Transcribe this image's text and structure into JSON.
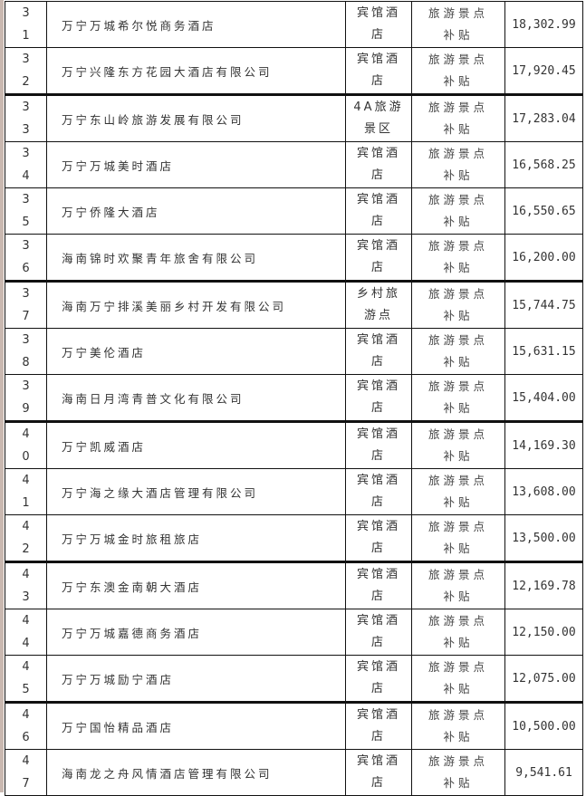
{
  "rows": [
    {
      "no": "31",
      "name": "万宁万城希尔悦商务酒店",
      "type": "宾馆酒店",
      "subsidy": "旅游景点补贴",
      "amount": "18,302.99"
    },
    {
      "no": "32",
      "name": "万宁兴隆东方花园大酒店有限公司",
      "type": "宾馆酒店",
      "subsidy": "旅游景点补贴",
      "amount": "17,920.45"
    },
    {
      "no": "33",
      "name": "万宁东山岭旅游发展有限公司",
      "type": "4A旅游景区",
      "subsidy": "旅游景点补贴",
      "amount": "17,283.04"
    },
    {
      "no": "34",
      "name": "万宁万城美时酒店",
      "type": "宾馆酒店",
      "subsidy": "旅游景点补贴",
      "amount": "16,568.25"
    },
    {
      "no": "35",
      "name": "万宁侨隆大酒店",
      "type": "宾馆酒店",
      "subsidy": "旅游景点补贴",
      "amount": "16,550.65"
    },
    {
      "no": "36",
      "name": "海南锦时欢聚青年旅舍有限公司",
      "type": "宾馆酒店",
      "subsidy": "旅游景点补贴",
      "amount": "16,200.00"
    },
    {
      "no": "37",
      "name": "海南万宁排溪美丽乡村开发有限公司",
      "type": "乡村旅游点",
      "subsidy": "旅游景点补贴",
      "amount": "15,744.75"
    },
    {
      "no": "38",
      "name": "万宁美伦酒店",
      "type": "宾馆酒店",
      "subsidy": "旅游景点补贴",
      "amount": "15,631.15"
    },
    {
      "no": "39",
      "name": "海南日月湾青普文化有限公司",
      "type": "宾馆酒店",
      "subsidy": "旅游景点补贴",
      "amount": "15,404.00"
    },
    {
      "no": "40",
      "name": "万宁凯威酒店",
      "type": "宾馆酒店",
      "subsidy": "旅游景点补贴",
      "amount": "14,169.30"
    },
    {
      "no": "41",
      "name": "万宁海之缘大酒店管理有限公司",
      "type": "宾馆酒店",
      "subsidy": "旅游景点补贴",
      "amount": "13,608.00"
    },
    {
      "no": "42",
      "name": "万宁万城金时旅租旅店",
      "type": "宾馆酒店",
      "subsidy": "旅游景点补贴",
      "amount": "13,500.00"
    },
    {
      "no": "43",
      "name": "万宁东澳金南朝大酒店",
      "type": "宾馆酒店",
      "subsidy": "旅游景点补贴",
      "amount": "12,169.78"
    },
    {
      "no": "44",
      "name": "万宁万城嘉德商务酒店",
      "type": "宾馆酒店",
      "subsidy": "旅游景点补贴",
      "amount": "12,150.00"
    },
    {
      "no": "45",
      "name": "万宁万城励宁酒店",
      "type": "宾馆酒店",
      "subsidy": "旅游景点补贴",
      "amount": "12,075.00"
    },
    {
      "no": "46",
      "name": "万宁国怡精品酒店",
      "type": "宾馆酒店",
      "subsidy": "旅游景点补贴",
      "amount": "10,500.00"
    },
    {
      "no": "47",
      "name": "海南龙之舟风情酒店管理有限公司",
      "type": "宾馆酒店",
      "subsidy": "旅游景点补贴",
      "amount": "9,541.61"
    }
  ]
}
